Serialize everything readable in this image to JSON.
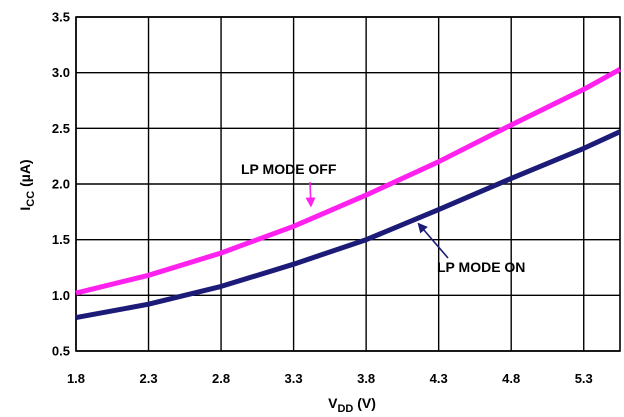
{
  "chart_data": {
    "type": "line",
    "xlabel": {
      "main": "V",
      "sub": "DD",
      "rest": " (V)"
    },
    "ylabel": {
      "main": "I",
      "sub": "CC",
      "rest": " (µA)"
    },
    "xlim": [
      1.8,
      5.55
    ],
    "ylim": [
      0.5,
      3.5
    ],
    "x_ticks": [
      "1.8",
      "2.3",
      "2.8",
      "3.3",
      "3.8",
      "4.3",
      "4.8",
      "5.3"
    ],
    "y_ticks": [
      "0.5",
      "1.0",
      "1.5",
      "2.0",
      "2.5",
      "3.0",
      "3.5"
    ],
    "grid": true,
    "series": [
      {
        "name": "LP MODE OFF",
        "color": "#ff22ee",
        "x": [
          1.8,
          2.3,
          2.8,
          3.3,
          3.8,
          4.3,
          4.8,
          5.3,
          5.55
        ],
        "y": [
          1.02,
          1.18,
          1.38,
          1.62,
          1.9,
          2.2,
          2.53,
          2.85,
          3.03
        ]
      },
      {
        "name": "LP MODE ON",
        "color": "#1c1c78",
        "x": [
          1.8,
          2.3,
          2.8,
          3.3,
          3.8,
          4.3,
          4.8,
          5.3,
          5.55
        ],
        "y": [
          0.8,
          0.92,
          1.08,
          1.28,
          1.5,
          1.77,
          2.05,
          2.32,
          2.47
        ]
      }
    ],
    "annotations": [
      {
        "text": "LP MODE OFF",
        "series": 0,
        "x": 3.42,
        "y": 1.78
      },
      {
        "text": "LP MODE ON",
        "series": 1,
        "x": 4.15,
        "y": 1.66
      }
    ]
  }
}
